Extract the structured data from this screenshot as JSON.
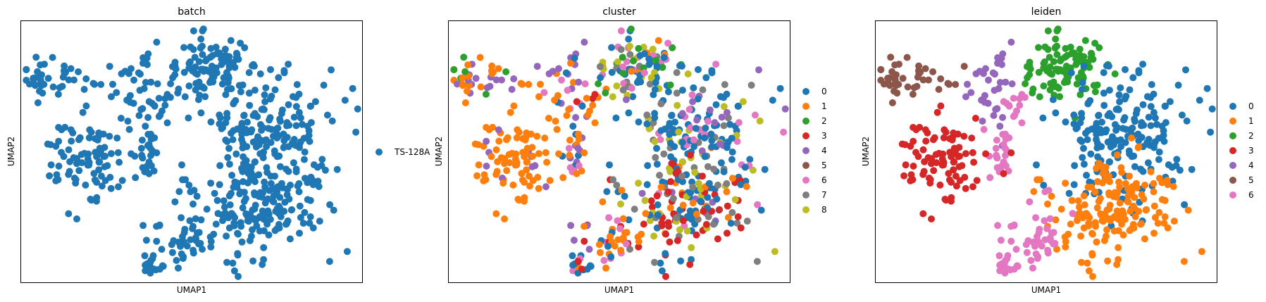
{
  "figure": {
    "background": "#ffffff"
  },
  "chart_data": [
    {
      "type": "scatter",
      "title": "batch",
      "xlabel": "UMAP1",
      "ylabel": "UMAP2",
      "grid": false,
      "legend_position": "right",
      "categories": [
        "TS-128A"
      ],
      "colors": [
        "#1f77b4"
      ],
      "series": [
        {
          "name": "TS-128A",
          "color": "#1f77b4",
          "points": "all-cells"
        }
      ],
      "point_count_estimate": 800
    },
    {
      "type": "scatter",
      "title": "cluster",
      "xlabel": "UMAP1",
      "ylabel": "UMAP2",
      "grid": false,
      "legend_position": "right",
      "categories": [
        "0",
        "1",
        "2",
        "3",
        "4",
        "5",
        "6",
        "7",
        "8"
      ],
      "colors": [
        "#1f77b4",
        "#ff7f0e",
        "#2ca02c",
        "#d62728",
        "#9467bd",
        "#8c564b",
        "#e377c2",
        "#7f7f7f",
        "#bcbd22"
      ],
      "point_count_estimate": 800
    },
    {
      "type": "scatter",
      "title": "leiden",
      "xlabel": "UMAP1",
      "ylabel": "UMAP2",
      "grid": false,
      "legend_position": "right",
      "categories": [
        "0",
        "1",
        "2",
        "3",
        "4",
        "5",
        "6"
      ],
      "colors": [
        "#1f77b4",
        "#ff7f0e",
        "#2ca02c",
        "#d62728",
        "#9467bd",
        "#8c564b",
        "#e377c2"
      ],
      "point_count_estimate": 800
    }
  ]
}
